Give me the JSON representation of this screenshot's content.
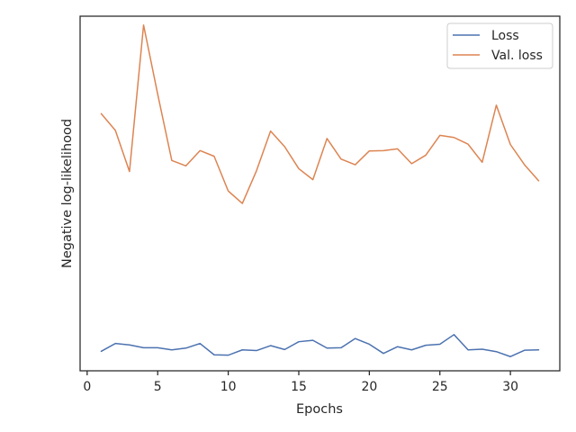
{
  "chart_data": {
    "type": "line",
    "xlabel": "Epochs",
    "ylabel": "Negative log-likelihood",
    "xlim": [
      -0.5,
      33.5
    ],
    "ylim": [
      0.0,
      1.0
    ],
    "y_tick_labels_shown": false,
    "grid": false,
    "legend_position": "top-right",
    "x_ticks": [
      0,
      5,
      10,
      15,
      20,
      25,
      30
    ],
    "x": [
      1,
      2,
      3,
      4,
      5,
      6,
      7,
      8,
      9,
      10,
      11,
      12,
      13,
      14,
      15,
      16,
      17,
      18,
      19,
      20,
      21,
      22,
      23,
      24,
      25,
      26,
      27,
      28,
      29,
      30,
      31,
      32
    ],
    "series": [
      {
        "name": "Loss",
        "color": "#4c72b0",
        "values": [
          0.055,
          0.077,
          0.073,
          0.065,
          0.065,
          0.059,
          0.064,
          0.077,
          0.045,
          0.044,
          0.059,
          0.057,
          0.071,
          0.06,
          0.082,
          0.086,
          0.064,
          0.065,
          0.091,
          0.075,
          0.049,
          0.068,
          0.059,
          0.072,
          0.075,
          0.102,
          0.059,
          0.061,
          0.054,
          0.04,
          0.058,
          0.059
        ]
      },
      {
        "name": "Val. loss",
        "color": "#dd8452",
        "values": [
          0.725,
          0.678,
          0.562,
          0.975,
          0.78,
          0.593,
          0.578,
          0.621,
          0.605,
          0.507,
          0.472,
          0.564,
          0.676,
          0.632,
          0.57,
          0.539,
          0.655,
          0.597,
          0.581,
          0.62,
          0.621,
          0.626,
          0.584,
          0.608,
          0.664,
          0.658,
          0.639,
          0.588,
          0.749,
          0.638,
          0.581,
          0.536
        ]
      }
    ]
  }
}
